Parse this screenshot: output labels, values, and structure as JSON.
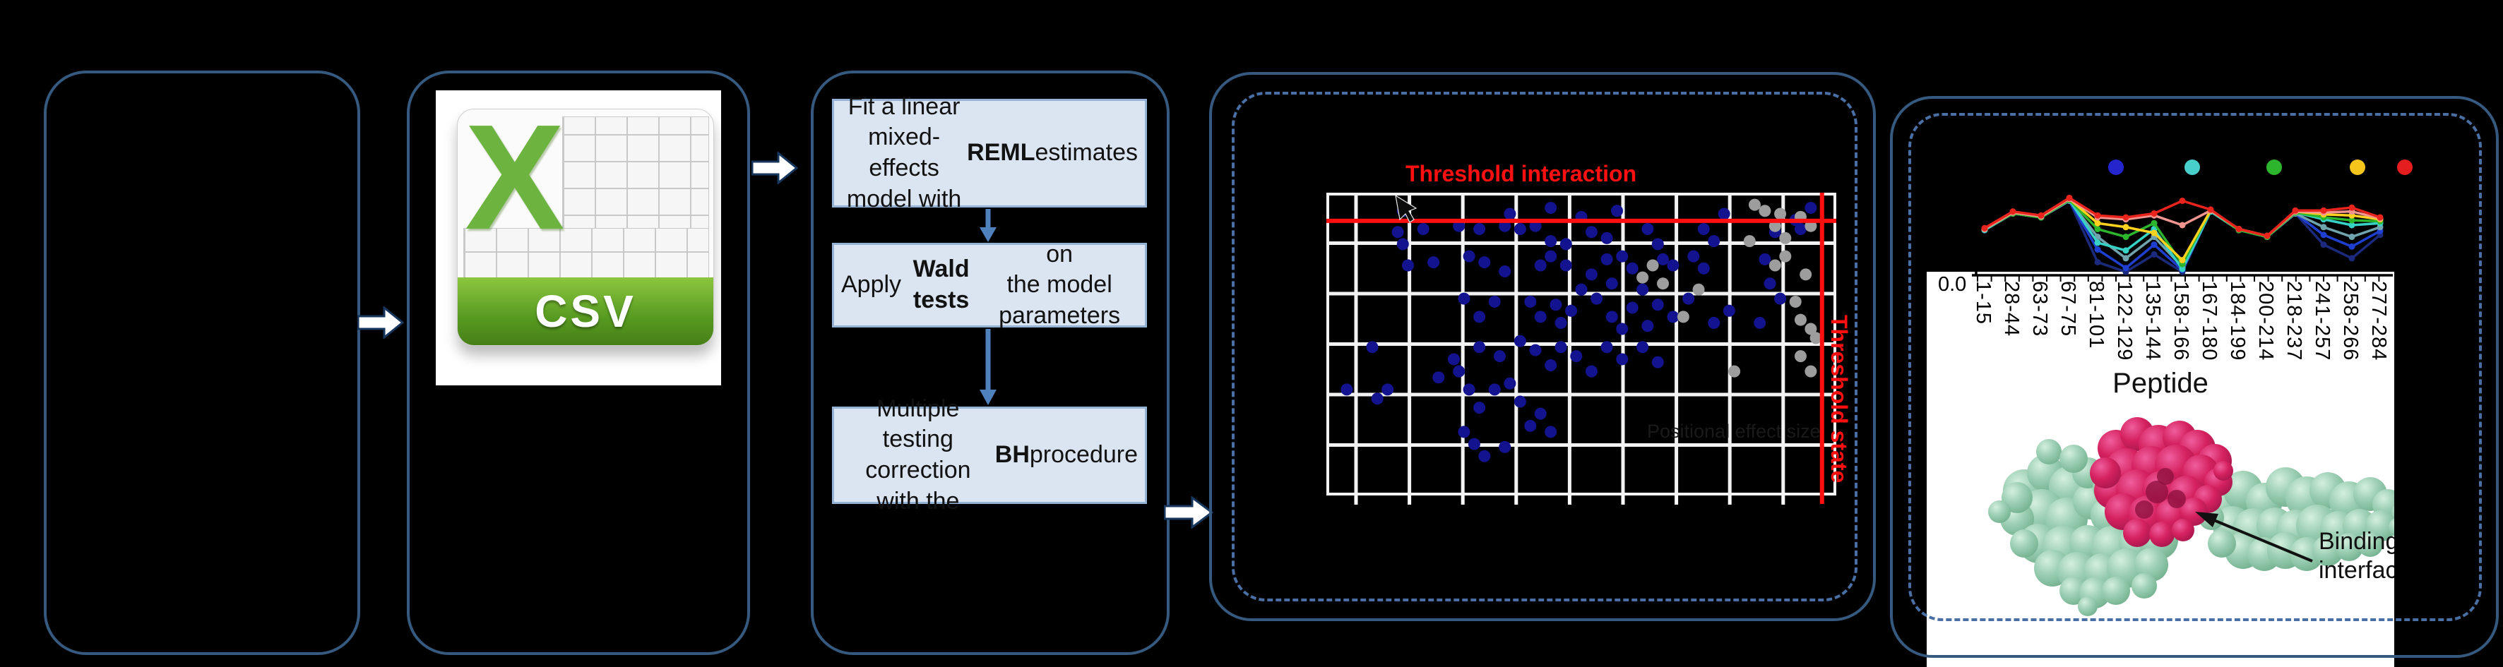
{
  "flow": {
    "csv_icon": {
      "letter": "X",
      "label": "CSV"
    },
    "steps": [
      {
        "segments": [
          {
            "text": "Fit a linear mixed-\neffects model with\n",
            "bold": false
          },
          {
            "text": "REML",
            "bold": true
          },
          {
            "text": " estimates",
            "bold": false
          }
        ]
      },
      {
        "segments": [
          {
            "text": "Apply ",
            "bold": false
          },
          {
            "text": "Wald tests",
            "bold": true
          },
          {
            "text": " on\nthe model parameters",
            "bold": false
          }
        ]
      },
      {
        "segments": [
          {
            "text": "Multiple testing\ncorrection\nwith the ",
            "bold": false
          },
          {
            "text": "BH",
            "bold": true
          },
          {
            "text": " procedure",
            "bold": false
          }
        ]
      }
    ]
  },
  "colors": {
    "box_border": "#35597f",
    "dashed_border": "#4a6fa5",
    "step_fill": "#dbe5f1",
    "step_border": "#95b3d7",
    "step_arrow": "#4f81bd",
    "threshold_red": "#ff0f0f",
    "scatter_blue": "#13138f",
    "scatter_gray": "#9d9d9d",
    "csv_green": "#6db33f",
    "protein_chain": "#9ed0b5",
    "protein_peptide": "#d5215f",
    "legend_dots": [
      "#2525cd",
      "#49cfcb",
      "#2db52d",
      "#f6c51c",
      "#e41e1e"
    ]
  },
  "chart_data": [
    {
      "type": "scatter",
      "title": "Threshold interaction",
      "right_axis_label": "Threshold state",
      "inner_ghost_label": "Positional effect size",
      "xlabel": "",
      "ylabel": "",
      "tick_labels_visible": false,
      "grid": {
        "vertical_lines": 9,
        "horizontal_lines": 5,
        "color": "#f2f2f2"
      },
      "thresholds": {
        "interaction_y_frac": 0.093,
        "state_x_frac": 0.972
      },
      "points_blue": [
        [
          0.15,
          0.06
        ],
        [
          0.36,
          0.07
        ],
        [
          0.44,
          0.05
        ],
        [
          0.5,
          0.08
        ],
        [
          0.57,
          0.06
        ],
        [
          0.78,
          0.07
        ],
        [
          0.92,
          0.09
        ],
        [
          0.95,
          0.05
        ],
        [
          0.14,
          0.13
        ],
        [
          0.15,
          0.17
        ],
        [
          0.19,
          0.12
        ],
        [
          0.26,
          0.11
        ],
        [
          0.3,
          0.12
        ],
        [
          0.35,
          0.11
        ],
        [
          0.38,
          0.12
        ],
        [
          0.41,
          0.11
        ],
        [
          0.44,
          0.16
        ],
        [
          0.47,
          0.17
        ],
        [
          0.52,
          0.13
        ],
        [
          0.55,
          0.15
        ],
        [
          0.63,
          0.12
        ],
        [
          0.65,
          0.17
        ],
        [
          0.74,
          0.12
        ],
        [
          0.76,
          0.16
        ],
        [
          0.88,
          0.13
        ],
        [
          0.93,
          0.12
        ],
        [
          0.16,
          0.24
        ],
        [
          0.21,
          0.23
        ],
        [
          0.28,
          0.21
        ],
        [
          0.31,
          0.23
        ],
        [
          0.35,
          0.26
        ],
        [
          0.42,
          0.24
        ],
        [
          0.44,
          0.21
        ],
        [
          0.47,
          0.24
        ],
        [
          0.5,
          0.32
        ],
        [
          0.52,
          0.27
        ],
        [
          0.55,
          0.22
        ],
        [
          0.56,
          0.3
        ],
        [
          0.58,
          0.21
        ],
        [
          0.6,
          0.25
        ],
        [
          0.62,
          0.32
        ],
        [
          0.66,
          0.22
        ],
        [
          0.68,
          0.24
        ],
        [
          0.72,
          0.21
        ],
        [
          0.74,
          0.25
        ],
        [
          0.86,
          0.22
        ],
        [
          0.87,
          0.3
        ],
        [
          0.27,
          0.35
        ],
        [
          0.3,
          0.41
        ],
        [
          0.33,
          0.36
        ],
        [
          0.4,
          0.36
        ],
        [
          0.42,
          0.41
        ],
        [
          0.45,
          0.37
        ],
        [
          0.46,
          0.43
        ],
        [
          0.48,
          0.39
        ],
        [
          0.53,
          0.35
        ],
        [
          0.56,
          0.41
        ],
        [
          0.58,
          0.45
        ],
        [
          0.6,
          0.38
        ],
        [
          0.63,
          0.44
        ],
        [
          0.65,
          0.37
        ],
        [
          0.68,
          0.41
        ],
        [
          0.71,
          0.35
        ],
        [
          0.76,
          0.43
        ],
        [
          0.79,
          0.39
        ],
        [
          0.85,
          0.43
        ],
        [
          0.89,
          0.35
        ],
        [
          0.25,
          0.55
        ],
        [
          0.3,
          0.51
        ],
        [
          0.34,
          0.54
        ],
        [
          0.38,
          0.49
        ],
        [
          0.41,
          0.52
        ],
        [
          0.44,
          0.57
        ],
        [
          0.46,
          0.51
        ],
        [
          0.49,
          0.54
        ],
        [
          0.52,
          0.59
        ],
        [
          0.55,
          0.51
        ],
        [
          0.58,
          0.55
        ],
        [
          0.62,
          0.51
        ],
        [
          0.65,
          0.56
        ],
        [
          0.09,
          0.51
        ],
        [
          0.04,
          0.65
        ],
        [
          0.12,
          0.65
        ],
        [
          0.1,
          0.68
        ],
        [
          0.22,
          0.61
        ],
        [
          0.26,
          0.59
        ],
        [
          0.28,
          0.65
        ],
        [
          0.3,
          0.71
        ],
        [
          0.33,
          0.65
        ],
        [
          0.36,
          0.63
        ],
        [
          0.38,
          0.69
        ],
        [
          0.4,
          0.77
        ],
        [
          0.42,
          0.73
        ],
        [
          0.44,
          0.79
        ],
        [
          0.27,
          0.79
        ],
        [
          0.29,
          0.83
        ],
        [
          0.31,
          0.87
        ],
        [
          0.35,
          0.84
        ]
      ],
      "points_gray": [
        [
          0.84,
          0.04
        ],
        [
          0.86,
          0.06
        ],
        [
          0.89,
          0.07
        ],
        [
          0.93,
          0.08
        ],
        [
          0.95,
          0.11
        ],
        [
          0.88,
          0.11
        ],
        [
          0.9,
          0.15
        ],
        [
          0.83,
          0.16
        ],
        [
          0.64,
          0.24
        ],
        [
          0.62,
          0.28
        ],
        [
          0.66,
          0.3
        ],
        [
          0.73,
          0.32
        ],
        [
          0.88,
          0.24
        ],
        [
          0.9,
          0.21
        ],
        [
          0.94,
          0.27
        ],
        [
          0.92,
          0.36
        ],
        [
          0.93,
          0.42
        ],
        [
          0.95,
          0.45
        ],
        [
          0.96,
          0.48
        ],
        [
          0.93,
          0.54
        ],
        [
          0.95,
          0.59
        ],
        [
          0.8,
          0.59
        ],
        [
          0.7,
          0.41
        ]
      ]
    },
    {
      "type": "line",
      "xlabel": "Peptide",
      "ylim_top_label": "0.0",
      "annotation": "Binding interface",
      "legend_marker_colors": [
        "#2525cd",
        "#49cfcb",
        "#2db52d",
        "#f6c51c",
        "#e41e1e"
      ],
      "categories": [
        "1-15",
        "28-44",
        "63-73",
        "67-75",
        "81-101",
        "122-129",
        "135-144",
        "158-166",
        "167-180",
        "184-199",
        "200-214",
        "218-237",
        "241-257",
        "258-266",
        "277-284"
      ],
      "series": [
        {
          "name": "navy",
          "color": "#1b2a7d",
          "values": [
            0.45,
            0.62,
            0.58,
            0.75,
            0.12,
            0.02,
            0.2,
            0.02,
            0.64,
            0.45,
            0.38,
            0.62,
            0.3,
            0.16,
            0.4
          ]
        },
        {
          "name": "blue",
          "color": "#1e3fd0",
          "values": [
            0.45,
            0.62,
            0.58,
            0.75,
            0.25,
            0.06,
            0.3,
            0.04,
            0.64,
            0.45,
            0.38,
            0.62,
            0.4,
            0.28,
            0.44
          ]
        },
        {
          "name": "cadet",
          "color": "#6fa3ad",
          "values": [
            0.45,
            0.62,
            0.58,
            0.75,
            0.38,
            0.16,
            0.38,
            0.07,
            0.64,
            0.45,
            0.38,
            0.62,
            0.48,
            0.38,
            0.48
          ]
        },
        {
          "name": "cyan",
          "color": "#37d2c6",
          "values": [
            0.45,
            0.62,
            0.58,
            0.76,
            0.32,
            0.24,
            0.46,
            0.05,
            0.64,
            0.45,
            0.38,
            0.63,
            0.56,
            0.5,
            0.52
          ]
        },
        {
          "name": "green",
          "color": "#2db52d",
          "values": [
            0.46,
            0.62,
            0.58,
            0.76,
            0.46,
            0.38,
            0.52,
            0.1,
            0.65,
            0.45,
            0.38,
            0.63,
            0.58,
            0.55,
            0.54
          ]
        },
        {
          "name": "yellow",
          "color": "#ffd21f",
          "values": [
            0.46,
            0.63,
            0.59,
            0.77,
            0.52,
            0.48,
            0.42,
            0.14,
            0.65,
            0.46,
            0.39,
            0.64,
            0.61,
            0.6,
            0.56
          ]
        },
        {
          "name": "salmon",
          "color": "#f0958f",
          "values": [
            0.46,
            0.63,
            0.59,
            0.77,
            0.58,
            0.56,
            0.6,
            0.5,
            0.65,
            0.46,
            0.39,
            0.64,
            0.63,
            0.64,
            0.57
          ]
        },
        {
          "name": "red",
          "color": "#e8241c",
          "values": [
            0.47,
            0.64,
            0.6,
            0.78,
            0.6,
            0.58,
            0.62,
            0.75,
            0.66,
            0.46,
            0.39,
            0.65,
            0.65,
            0.68,
            0.58
          ]
        }
      ]
    }
  ]
}
